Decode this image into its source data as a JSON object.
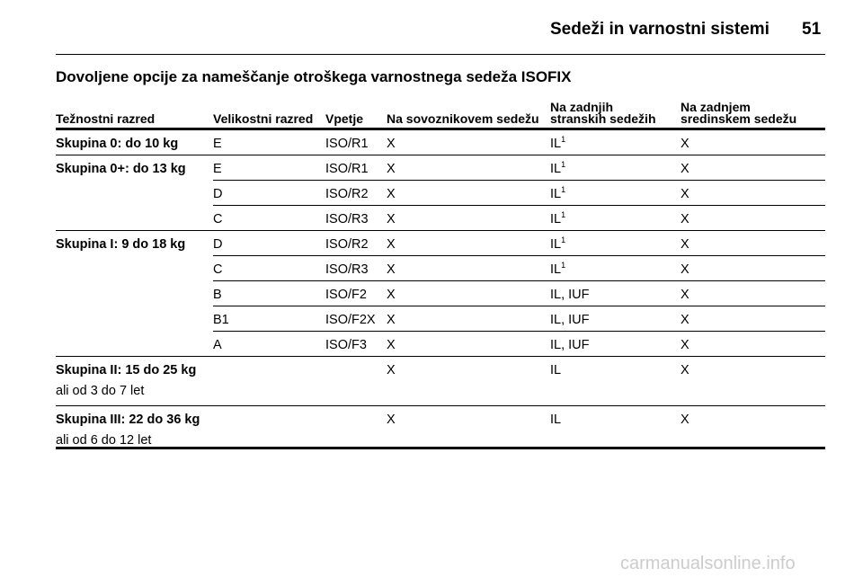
{
  "header": {
    "title": "Sedeži in varnostni sistemi",
    "page": "51"
  },
  "section_title": "Dovoljene opcije za nameščanje otroškega varnostnega sedeža ISOFIX",
  "table": {
    "columns": [
      "Težnostni razred",
      "Velikostni razred",
      "Vpetje",
      "Na sovoznikovem sedežu",
      "Na zadnjih stranskih sedežih",
      "Na zadnjem sredinskem sedežu"
    ],
    "groups": [
      {
        "label": "Skupina 0: do 10 kg",
        "rows": [
          {
            "size": "E",
            "fixture": "ISO/R1",
            "front": "X",
            "rear_side": {
              "text": "IL",
              "sup": "1"
            },
            "rear_center": "X"
          }
        ]
      },
      {
        "label": "Skupina 0+: do 13 kg",
        "rows": [
          {
            "size": "E",
            "fixture": "ISO/R1",
            "front": "X",
            "rear_side": {
              "text": "IL",
              "sup": "1"
            },
            "rear_center": "X"
          },
          {
            "size": "D",
            "fixture": "ISO/R2",
            "front": "X",
            "rear_side": {
              "text": "IL",
              "sup": "1"
            },
            "rear_center": "X"
          },
          {
            "size": "C",
            "fixture": "ISO/R3",
            "front": "X",
            "rear_side": {
              "text": "IL",
              "sup": "1"
            },
            "rear_center": "X"
          }
        ]
      },
      {
        "label": "Skupina I: 9 do 18 kg",
        "rows": [
          {
            "size": "D",
            "fixture": "ISO/R2",
            "front": "X",
            "rear_side": {
              "text": "IL",
              "sup": "1"
            },
            "rear_center": "X"
          },
          {
            "size": "C",
            "fixture": "ISO/R3",
            "front": "X",
            "rear_side": {
              "text": "IL",
              "sup": "1"
            },
            "rear_center": "X"
          },
          {
            "size": "B",
            "fixture": "ISO/F2",
            "front": "X",
            "rear_side": {
              "text": "IL, IUF"
            },
            "rear_center": "X"
          },
          {
            "size": "B1",
            "fixture": "ISO/F2X",
            "front": "X",
            "rear_side": {
              "text": "IL, IUF"
            },
            "rear_center": "X"
          },
          {
            "size": "A",
            "fixture": "ISO/F3",
            "front": "X",
            "rear_side": {
              "text": "IL, IUF"
            },
            "rear_center": "X"
          }
        ]
      },
      {
        "label": "Skupina II: 15 do 25 kg",
        "note": "ali od 3 do 7 let",
        "rows": [
          {
            "front": "X",
            "rear_side": {
              "text": "IL"
            },
            "rear_center": "X"
          }
        ]
      },
      {
        "label": "Skupina III: 22 do 36 kg",
        "note": "ali od 6 do 12 let",
        "rows": [
          {
            "front": "X",
            "rear_side": {
              "text": "IL"
            },
            "rear_center": "X"
          }
        ]
      }
    ]
  },
  "watermark": "carmanualsonline.info"
}
